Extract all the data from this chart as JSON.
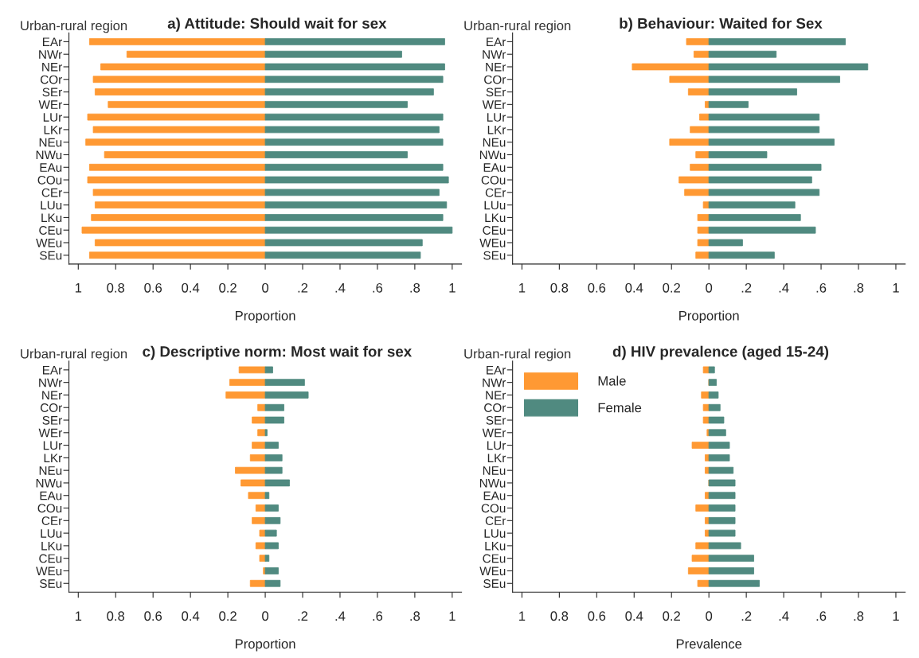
{
  "chart_data": [
    {
      "type": "bar",
      "orientation": "horizontal",
      "title": "a) Attitude: Should wait for sex",
      "stacked": true,
      "xlabel": "Proportion",
      "ylabel": "Urban-rural region",
      "categories": [
        "EAr",
        "NWr",
        "NEr",
        "COr",
        "SEr",
        "WEr",
        "LUr",
        "LKr",
        "NEu",
        "NWu",
        "EAu",
        "COu",
        "CEr",
        "LUu",
        "LKu",
        "CEu",
        "WEu",
        "SEu"
      ],
      "series": [
        {
          "color": "#ff9933",
          "values": [
            -0.94,
            -0.74,
            -0.88,
            -0.92,
            -0.91,
            -0.84,
            -0.95,
            -0.92,
            -0.96,
            -0.86,
            -0.94,
            -0.95,
            -0.92,
            -0.91,
            -0.93,
            -0.98,
            -0.91,
            -0.94
          ]
        },
        {
          "color": "#508a80",
          "values": [
            0.96,
            0.73,
            0.96,
            0.95,
            0.9,
            0.76,
            0.95,
            0.93,
            0.95,
            0.76,
            0.95,
            0.98,
            0.93,
            0.97,
            0.95,
            1.0,
            0.84,
            0.83
          ]
        }
      ],
      "xlim": [
        -1.05,
        1.05
      ],
      "xticks": [
        {
          "value": -1,
          "label": "1"
        },
        {
          "value": -0.8,
          "label": "0.8"
        },
        {
          "value": -0.6,
          "label": "0.6"
        },
        {
          "value": -0.4,
          "label": "0.4"
        },
        {
          "value": -0.2,
          "label": "0.2"
        },
        0,
        {
          "value": 0.2,
          "label": ".2"
        },
        {
          "value": 0.4,
          "label": ".4"
        },
        {
          "value": 0.6,
          "label": ".6"
        },
        {
          "value": 0.8,
          "label": ".8"
        },
        1
      ],
      "grid": false,
      "legend": false
    },
    {
      "type": "bar",
      "orientation": "horizontal",
      "title": "b) Behaviour: Waited for Sex",
      "stacked": true,
      "xlabel": "Proportion",
      "ylabel": "Urban-rural region",
      "categories": [
        "EAr",
        "NWr",
        "NEr",
        "COr",
        "SEr",
        "WEr",
        "LUr",
        "LKr",
        "NEu",
        "NWu",
        "EAu",
        "COu",
        "CEr",
        "LUu",
        "LKu",
        "CEu",
        "WEu",
        "SEu"
      ],
      "series": [
        {
          "color": "#ff9933",
          "values": [
            -0.12,
            -0.08,
            -0.41,
            -0.21,
            -0.11,
            -0.02,
            -0.05,
            -0.1,
            -0.21,
            -0.07,
            -0.1,
            -0.16,
            -0.13,
            -0.03,
            -0.06,
            -0.06,
            -0.06,
            -0.07
          ]
        },
        {
          "color": "#508a80",
          "values": [
            0.73,
            0.36,
            0.85,
            0.7,
            0.47,
            0.21,
            0.59,
            0.59,
            0.67,
            0.31,
            0.6,
            0.55,
            0.59,
            0.46,
            0.49,
            0.57,
            0.18,
            0.35
          ]
        }
      ],
      "xlim": [
        -1.05,
        1.05
      ],
      "xticks": [
        {
          "value": -1,
          "label": "1"
        },
        {
          "value": -0.8,
          "label": "0.8"
        },
        {
          "value": -0.6,
          "label": "0.6"
        },
        {
          "value": -0.4,
          "label": "0.4"
        },
        {
          "value": -0.2,
          "label": "0.2"
        },
        0,
        {
          "value": 0.2,
          "label": ".2"
        },
        {
          "value": 0.4,
          "label": ".4"
        },
        {
          "value": 0.6,
          "label": ".6"
        },
        {
          "value": 0.8,
          "label": ".8"
        },
        1
      ],
      "grid": false,
      "legend": false
    },
    {
      "type": "bar",
      "orientation": "horizontal",
      "title": "c) Descriptive norm: Most wait for sex",
      "stacked": true,
      "xlabel": "Proportion",
      "ylabel": "Urban-rural region",
      "categories": [
        "EAr",
        "NWr",
        "NEr",
        "COr",
        "SEr",
        "WEr",
        "LUr",
        "LKr",
        "NEu",
        "NWu",
        "EAu",
        "COu",
        "CEr",
        "LUu",
        "LKu",
        "CEu",
        "WEu",
        "SEu"
      ],
      "series": [
        {
          "color": "#ff9933",
          "values": [
            -0.14,
            -0.19,
            -0.21,
            -0.04,
            -0.07,
            -0.04,
            -0.07,
            -0.08,
            -0.16,
            -0.13,
            -0.09,
            -0.05,
            -0.07,
            -0.03,
            -0.05,
            -0.03,
            -0.01,
            -0.08
          ]
        },
        {
          "color": "#508a80",
          "values": [
            0.04,
            0.21,
            0.23,
            0.1,
            0.1,
            0.01,
            0.07,
            0.09,
            0.09,
            0.13,
            0.02,
            0.07,
            0.08,
            0.06,
            0.07,
            0.02,
            0.07,
            0.08
          ]
        }
      ],
      "xlim": [
        -1.05,
        1.05
      ],
      "xticks": [
        {
          "value": -1,
          "label": "1"
        },
        {
          "value": -0.8,
          "label": "0.8"
        },
        {
          "value": -0.6,
          "label": "0.6"
        },
        {
          "value": -0.4,
          "label": "0.4"
        },
        {
          "value": -0.2,
          "label": "0.2"
        },
        0,
        {
          "value": 0.2,
          "label": ".2"
        },
        {
          "value": 0.4,
          "label": ".4"
        },
        {
          "value": 0.6,
          "label": ".6"
        },
        {
          "value": 0.8,
          "label": ".8"
        },
        1
      ],
      "grid": false,
      "legend": false
    },
    {
      "type": "bar",
      "orientation": "horizontal",
      "title": "d) HIV prevalence (aged 15-24)",
      "xlabel": "Prevalence",
      "ylabel": "Urban-rural region",
      "categories": [
        "EAr",
        "NWr",
        "NEr",
        "COr",
        "SEr",
        "WEr",
        "LUr",
        "LKr",
        "NEu",
        "NWu",
        "EAu",
        "COu",
        "CEr",
        "LUu",
        "LKu",
        "CEu",
        "WEu",
        "SEu"
      ],
      "series": [
        {
          "name": "Male",
          "color": "#ff9933",
          "values": [
            -0.03,
            0,
            -0.04,
            -0.03,
            -0.03,
            -0.01,
            -0.09,
            -0.02,
            -0.02,
            0,
            -0.02,
            -0.07,
            -0.02,
            -0.02,
            -0.07,
            -0.09,
            -0.11,
            -0.06
          ]
        },
        {
          "name": "Female",
          "color": "#508a80",
          "values": [
            0.03,
            0.04,
            0.05,
            0.06,
            0.08,
            0.09,
            0.11,
            0.11,
            0.13,
            0.14,
            0.14,
            0.14,
            0.14,
            0.14,
            0.17,
            0.24,
            0.24,
            0.27
          ]
        }
      ],
      "xlim": [
        -1.05,
        1.05
      ],
      "xticks": [
        {
          "value": -1,
          "label": "1"
        },
        {
          "value": -0.8,
          "label": "0.8"
        },
        {
          "value": -0.6,
          "label": "0.6"
        },
        {
          "value": -0.4,
          "label": "0.4"
        },
        {
          "value": -0.2,
          "label": "0.2"
        },
        0,
        {
          "value": 0.2,
          "label": ".2"
        },
        {
          "value": 0.4,
          "label": ".4"
        },
        {
          "value": 0.6,
          "label": ".6"
        },
        {
          "value": 0.8,
          "label": ".8"
        },
        1
      ],
      "grid": false,
      "legend": "top left",
      "stacked": true
    }
  ]
}
